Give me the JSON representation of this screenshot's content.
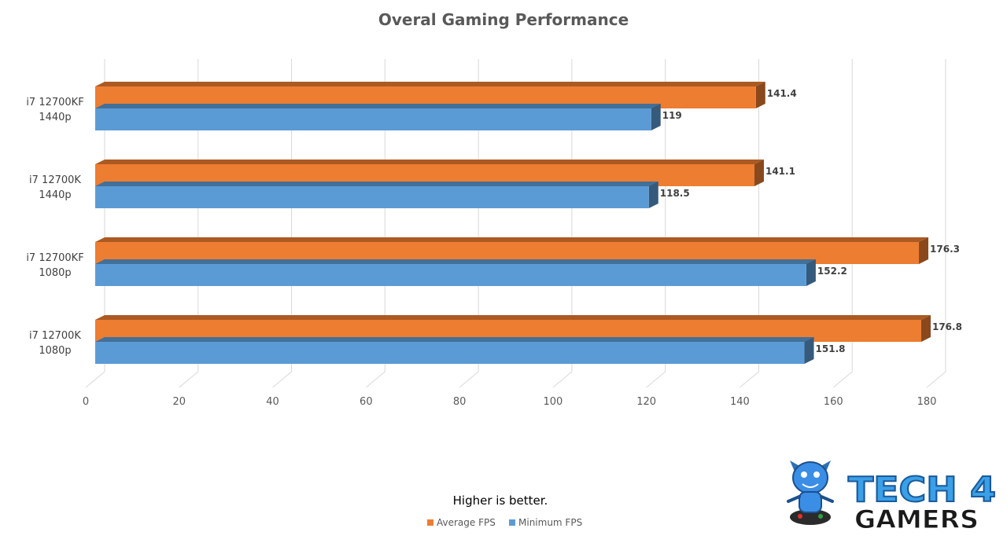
{
  "chart_data": {
    "type": "bar",
    "orientation": "horizontal",
    "title": "Overal Gaming Performance",
    "categories": [
      [
        "i7 12700KF",
        "1440p"
      ],
      [
        "i7 12700K",
        "1440p"
      ],
      [
        "i7 12700KF",
        "1080p"
      ],
      [
        "i7 12700K",
        "1080p"
      ]
    ],
    "series": [
      {
        "name": "Average FPS",
        "color": "#ED7D31",
        "values": [
          141.4,
          141.1,
          176.3,
          176.8
        ],
        "labels": [
          "141.4",
          "141.1",
          "176.3",
          "176.8"
        ]
      },
      {
        "name": "Minimum FPS",
        "color": "#5B9BD5",
        "values": [
          119,
          118.5,
          152.2,
          151.8
        ],
        "labels": [
          "119",
          "118.5",
          "152.2",
          "151.8"
        ]
      }
    ],
    "xlim": [
      0,
      180
    ],
    "xticks": [
      0,
      20,
      40,
      60,
      80,
      100,
      120,
      140,
      160,
      180
    ],
    "grid": true,
    "legend": "bottom",
    "note": "Higher is better."
  },
  "logo": {
    "line1": "TECH 4",
    "line2": "GAMERS",
    "icon": "mascot-icon"
  }
}
